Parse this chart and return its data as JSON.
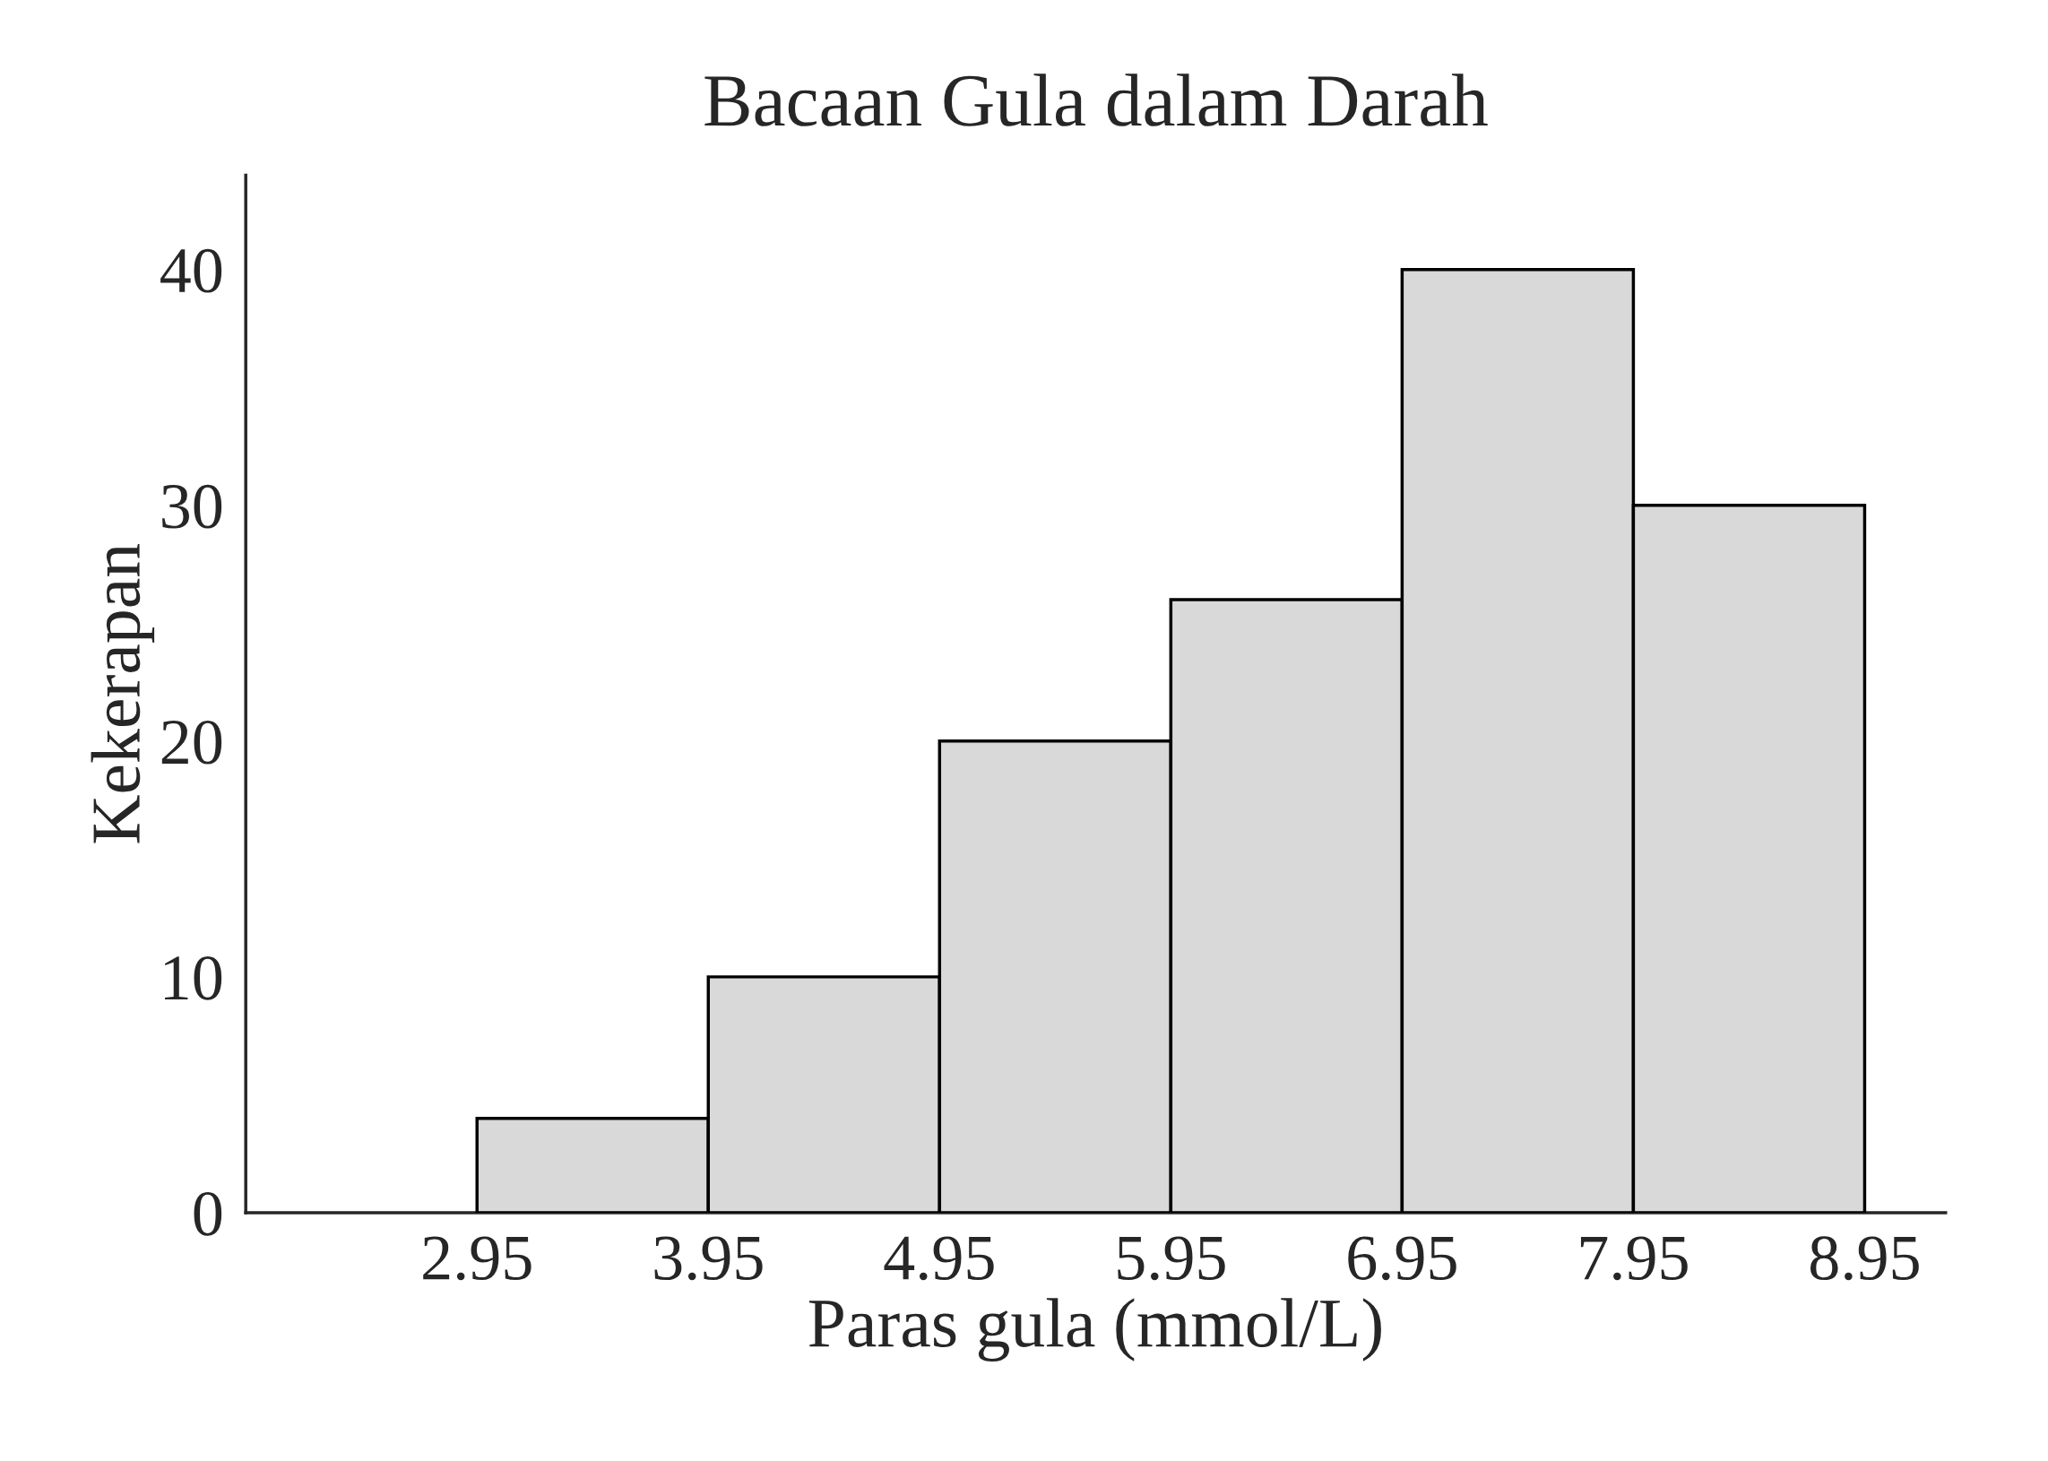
{
  "chart_data": {
    "type": "histogram",
    "title": "Bacaan Gula dalam Darah",
    "xlabel": "Paras gula (mmol/L)",
    "ylabel": "Kekerapan",
    "bins": [
      2.95,
      3.95,
      4.95,
      5.95,
      6.95,
      7.95,
      8.95
    ],
    "values": [
      4,
      10,
      20,
      26,
      40,
      30
    ],
    "color": "#d9d9d9",
    "xlim": [
      1.95,
      9.3
    ],
    "xticks": [
      2.95,
      3.95,
      4.95,
      5.95,
      6.95,
      7.95,
      8.95
    ],
    "ylim": [
      0,
      44
    ],
    "yticks": [
      0,
      10,
      20,
      30,
      40
    ]
  }
}
